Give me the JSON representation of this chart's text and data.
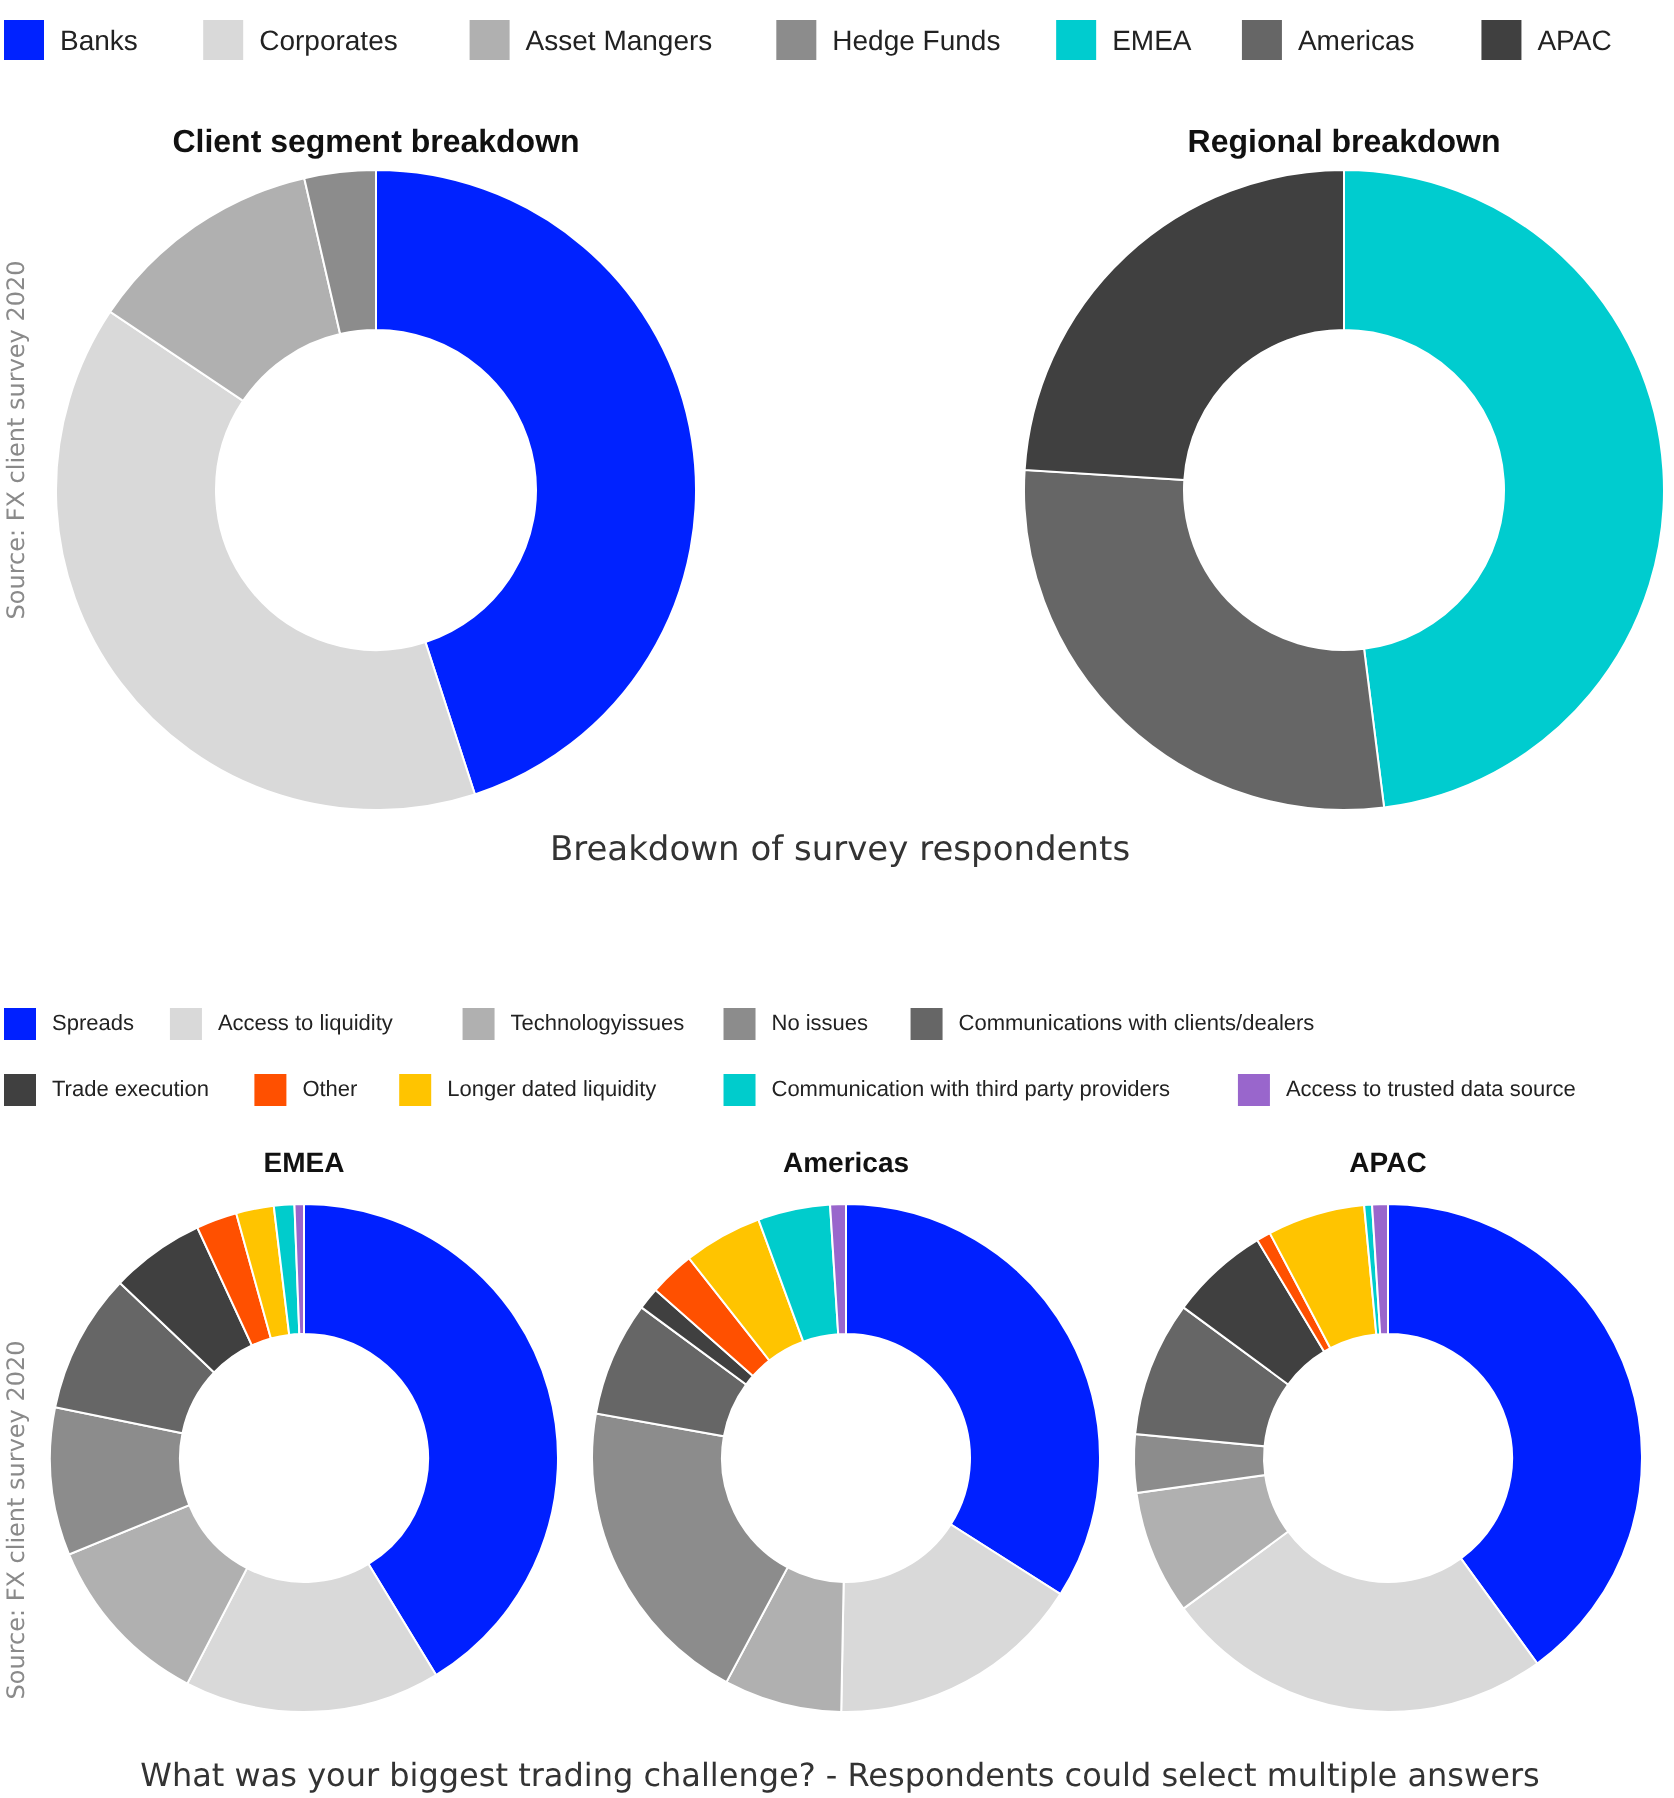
{
  "chart_data": [
    {
      "type": "donut",
      "title": "Client segment breakdown",
      "categories": [
        "Banks",
        "Corporates",
        "Asset Mangers",
        "Hedge Funds"
      ],
      "values": [
        45,
        39.4,
        12,
        3.6
      ],
      "colors": [
        "#0022ff",
        "#d9d9d9",
        "#b0b0b0",
        "#8c8c8c"
      ],
      "legend": "top",
      "annotations": [
        "Source: FX client survey 2020",
        "Breakdown of survey respondents"
      ]
    },
    {
      "type": "donut",
      "title": "Regional breakdown",
      "categories": [
        "EMEA",
        "Americas",
        "APAC"
      ],
      "values": [
        48,
        28,
        24
      ],
      "colors": [
        "#00cccf",
        "#666666",
        "#404040"
      ],
      "legend": "top"
    },
    {
      "type": "donut",
      "title": "EMEA",
      "categories": [
        "Spreads",
        "Access to liquidity",
        "Technologyissues",
        "No issues",
        "Communications with clients/dealers",
        "Trade execution",
        "Other",
        "Longer dated liquidity",
        "Communication with third party providers",
        "Access to trusted data source"
      ],
      "values": [
        41.3,
        16.3,
        11.2,
        9.4,
        8.9,
        6,
        2.6,
        2.4,
        1.3,
        0.6
      ],
      "colors": [
        "#0020ff",
        "#d9d9d9",
        "#b0b0b0",
        "#8c8c8c",
        "#666666",
        "#404040",
        "#ff5000",
        "#ffc400",
        "#00cccc",
        "#9966cc"
      ],
      "legend": "top",
      "annotations": [
        "Source: FX client survey 2020",
        "What was your biggest trading challenge? - Respondents could select multiple answers"
      ]
    },
    {
      "type": "donut",
      "title": "Americas",
      "categories": [
        null,
        null,
        null,
        null,
        null,
        null,
        null,
        null,
        null,
        null
      ],
      "values": [
        34,
        16.3,
        7.5,
        20,
        7.3,
        1.4,
        2.9,
        5,
        4.6,
        1
      ],
      "colors": [
        "#0020ff",
        "#d9d9d9",
        "#b0b0b0",
        "#8c8c8c",
        "#666666",
        "#404040",
        "#ff5000",
        "#ffc400",
        "#00cccc",
        "#9966cc"
      ]
    },
    {
      "type": "donut",
      "title": "APAC",
      "categories": [
        null,
        null,
        null,
        null,
        null,
        null,
        null,
        null,
        null,
        null
      ],
      "values": [
        40,
        24.9,
        7.9,
        3.7,
        8.6,
        6.3,
        0.9,
        6.2,
        0.5,
        1
      ],
      "colors": [
        "#0020ff",
        "#d9d9d9",
        "#b0b0b0",
        "#8c8c8c",
        "#666666",
        "#404040",
        "#ff5000",
        "#ffc400",
        "#00cccc",
        "#9966cc"
      ]
    }
  ]
}
